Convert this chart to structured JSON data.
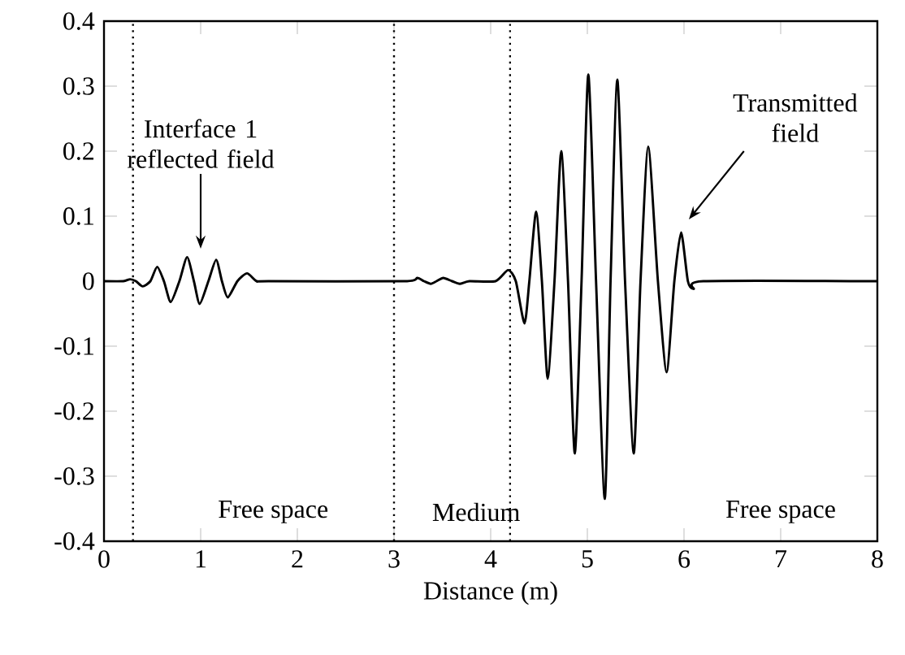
{
  "chart_data": {
    "type": "line",
    "xlabel": "Distance (m)",
    "xlim": [
      0,
      8
    ],
    "ylim": [
      -0.4,
      0.4
    ],
    "xticks": [
      0,
      1,
      2,
      3,
      4,
      5,
      6,
      7,
      8
    ],
    "yticks": [
      -0.4,
      -0.3,
      -0.2,
      -0.1,
      0,
      0.1,
      0.2,
      0.3,
      0.4
    ],
    "grid": false,
    "marker": "none",
    "line_style": "solid",
    "series": [
      {
        "color": "#000000",
        "x": [
          0,
          0.2,
          0.27,
          0.33,
          0.4,
          0.48,
          0.55,
          0.62,
          0.69,
          0.78,
          0.86,
          0.93,
          0.99,
          1.08,
          1.16,
          1.22,
          1.28,
          1.38,
          1.48,
          1.58,
          1.7,
          3.1,
          3.24,
          3.31,
          3.38,
          3.44,
          3.51,
          3.6,
          3.68,
          3.78,
          4.05,
          4.18,
          4.26,
          4.35,
          4.4,
          4.47,
          4.53,
          4.59,
          4.66,
          4.73,
          4.8,
          4.87,
          4.94,
          5.01,
          5.09,
          5.18,
          5.24,
          5.31,
          5.39,
          5.48,
          5.55,
          5.63,
          5.73,
          5.82,
          5.9,
          5.97,
          6.04,
          6.1,
          6.2,
          8
        ],
        "values": [
          0,
          0,
          0.003,
          0,
          -0.008,
          0,
          0.022,
          0,
          -0.032,
          0,
          0.037,
          0,
          -0.035,
          0,
          0.033,
          0,
          -0.025,
          0,
          0.012,
          0,
          0,
          0,
          0.005,
          0,
          -0.004,
          0,
          0.005,
          0,
          -0.004,
          0,
          0,
          0.017,
          0,
          -0.065,
          0,
          0.107,
          0,
          -0.15,
          0,
          0.2,
          0,
          -0.265,
          0,
          0.318,
          0,
          -0.335,
          0,
          0.31,
          0,
          -0.265,
          0,
          0.207,
          0,
          -0.14,
          0,
          0.075,
          0,
          -0.012,
          0,
          0
        ]
      }
    ],
    "ref_lines": [
      {
        "axis": "x",
        "value": 0.3,
        "color": "#000000",
        "line_style": "dotted"
      },
      {
        "axis": "x",
        "value": 3,
        "color": "#000000",
        "line_style": "dotted"
      },
      {
        "axis": "x",
        "value": 4.2,
        "color": "#000000",
        "line_style": "dotted"
      }
    ],
    "annotations": [
      "Interface 1 reflected field",
      "Transmitted field",
      "Free space",
      "Medium",
      "Free space"
    ]
  }
}
